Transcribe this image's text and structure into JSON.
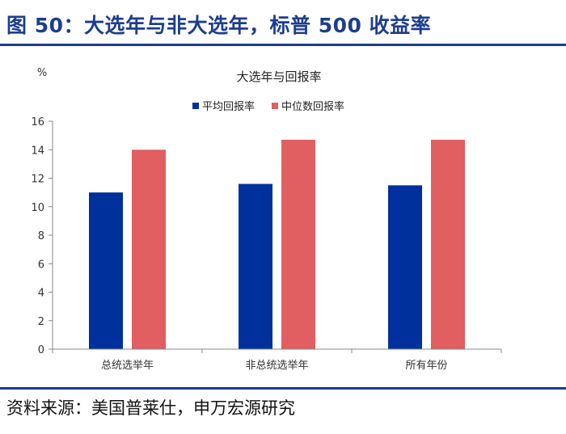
{
  "header": {
    "title": "图 50：大选年与非大选年，标普 500 收益率"
  },
  "footer": {
    "source": "资料来源：美国普莱仕，申万宏源研究"
  },
  "chart_data": {
    "type": "bar",
    "title": "大选年与回报率",
    "unit": "%",
    "categories": [
      "总统选举年",
      "非总统选举年",
      "所有年份"
    ],
    "series": [
      {
        "name": "平均回报率",
        "values": [
          11.0,
          11.6,
          11.5
        ],
        "color": "#00309b"
      },
      {
        "name": "中位数回报率",
        "values": [
          14.0,
          14.7,
          14.7
        ],
        "color": "#e15e61"
      }
    ],
    "ylim": [
      0,
      16
    ],
    "yticks": [
      "0",
      "2",
      "4",
      "6",
      "8",
      "10",
      "12",
      "14",
      "16"
    ],
    "grid": false,
    "legend_position": "top"
  }
}
